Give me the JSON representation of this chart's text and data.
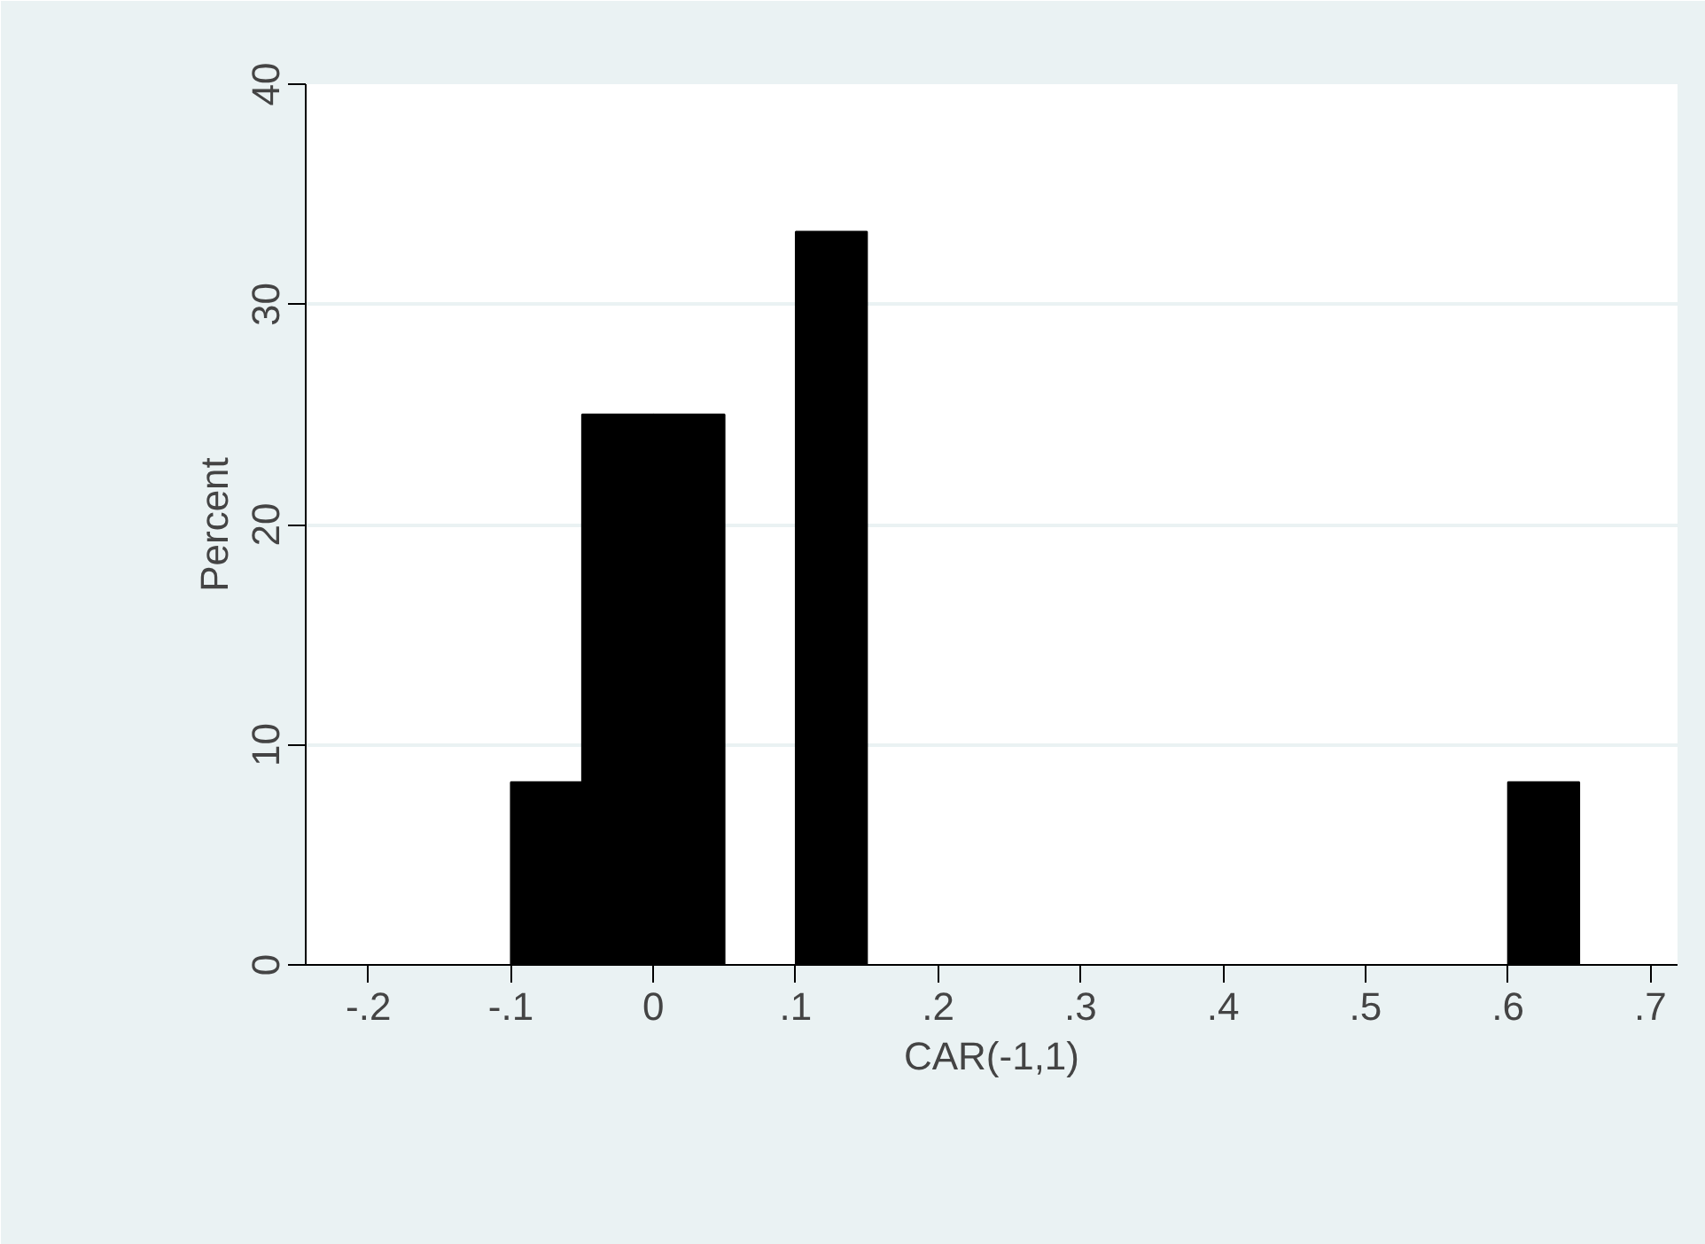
{
  "chart_data": {
    "type": "histogram",
    "xlabel": "CAR(-1,1)",
    "ylabel": "Percent",
    "color": "#000000",
    "bins": [
      -0.1,
      -0.05,
      0,
      0.05,
      0.1,
      0.15,
      0.2,
      0.25,
      0.3,
      0.35,
      0.4,
      0.45,
      0.5,
      0.55,
      0.6,
      0.65
    ],
    "values": [
      8.3,
      25,
      25,
      0,
      33.3,
      0,
      0,
      0,
      0,
      0,
      0,
      0,
      0,
      0,
      8.3
    ],
    "xlim": [
      -0.244,
      0.719
    ],
    "ylim": [
      0,
      40
    ],
    "xticks": [
      {
        "value": -0.2,
        "label": "-.2"
      },
      {
        "value": -0.1,
        "label": "-.1"
      },
      0,
      {
        "value": 0.1,
        "label": ".1"
      },
      {
        "value": 0.2,
        "label": ".2"
      },
      {
        "value": 0.3,
        "label": ".3"
      },
      {
        "value": 0.4,
        "label": ".4"
      },
      {
        "value": 0.5,
        "label": ".5"
      },
      {
        "value": 0.6,
        "label": ".6"
      },
      {
        "value": 0.7,
        "label": ".7"
      }
    ],
    "yticks": [
      0,
      10,
      20,
      30,
      40
    ],
    "grid": "y"
  }
}
